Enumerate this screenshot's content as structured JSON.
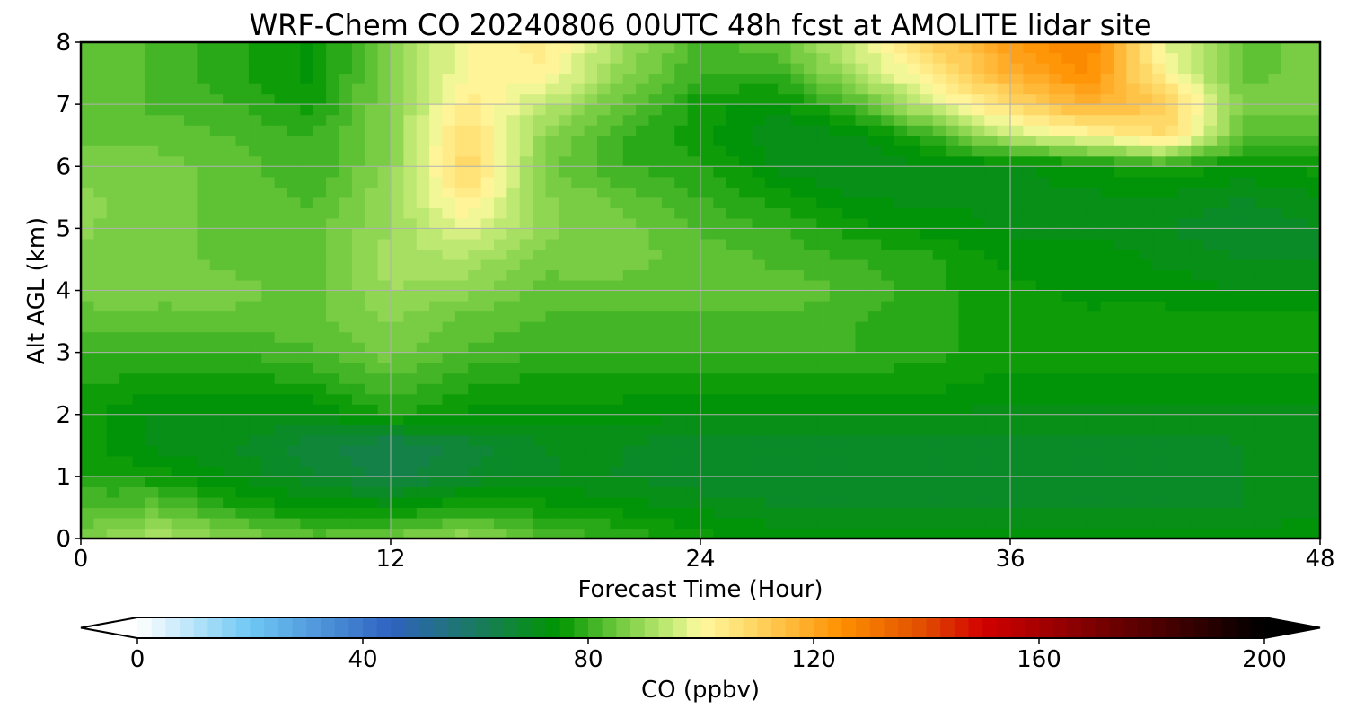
{
  "chart_data": {
    "type": "heatmap",
    "title": "WRF-Chem CO  20240806 00UTC 48h fcst at AMOLITE lidar site",
    "xlabel": "Forecast Time (Hour)",
    "ylabel": "Alt AGL (km)",
    "xlim": [
      0,
      48
    ],
    "ylim": [
      0,
      8
    ],
    "x_ticks": [
      0,
      12,
      24,
      36,
      48
    ],
    "y_ticks": [
      0,
      1,
      2,
      3,
      4,
      5,
      6,
      7,
      8
    ],
    "grid": true,
    "x": [
      0,
      3,
      6,
      9,
      12,
      15,
      18,
      21,
      24,
      27,
      30,
      33,
      36,
      39,
      42,
      45,
      48
    ],
    "y": [
      0,
      0.5,
      1,
      1.5,
      2,
      2.5,
      3,
      3.5,
      4,
      4.5,
      5,
      5.5,
      6,
      6.5,
      7,
      7.5,
      8
    ],
    "z": [
      [
        86,
        92,
        88,
        84,
        86,
        90,
        82,
        80,
        76,
        74,
        74,
        74,
        74,
        74,
        74,
        74,
        74
      ],
      [
        82,
        84,
        78,
        74,
        74,
        78,
        76,
        74,
        72,
        70,
        70,
        70,
        70,
        70,
        70,
        70,
        72
      ],
      [
        78,
        76,
        72,
        68,
        64,
        68,
        70,
        70,
        68,
        68,
        68,
        68,
        68,
        68,
        68,
        70,
        72
      ],
      [
        76,
        72,
        70,
        66,
        62,
        66,
        70,
        70,
        68,
        68,
        68,
        68,
        68,
        68,
        68,
        70,
        72
      ],
      [
        76,
        72,
        72,
        72,
        78,
        74,
        74,
        74,
        72,
        72,
        72,
        72,
        72,
        72,
        72,
        72,
        72
      ],
      [
        78,
        76,
        76,
        78,
        82,
        78,
        76,
        76,
        76,
        76,
        76,
        76,
        74,
        74,
        74,
        74,
        74
      ],
      [
        80,
        80,
        80,
        82,
        86,
        82,
        80,
        80,
        80,
        80,
        80,
        78,
        76,
        76,
        76,
        76,
        76
      ],
      [
        84,
        84,
        84,
        84,
        88,
        84,
        82,
        82,
        82,
        82,
        80,
        78,
        76,
        76,
        76,
        76,
        76
      ],
      [
        86,
        86,
        86,
        84,
        90,
        88,
        84,
        84,
        84,
        84,
        82,
        78,
        76,
        74,
        74,
        72,
        72
      ],
      [
        86,
        86,
        84,
        84,
        92,
        92,
        86,
        86,
        84,
        82,
        80,
        78,
        74,
        74,
        72,
        70,
        70
      ],
      [
        88,
        86,
        84,
        84,
        90,
        98,
        88,
        86,
        82,
        80,
        76,
        74,
        72,
        72,
        70,
        68,
        70
      ],
      [
        88,
        86,
        84,
        82,
        90,
        104,
        88,
        84,
        80,
        76,
        72,
        72,
        72,
        72,
        72,
        70,
        72
      ],
      [
        86,
        86,
        84,
        80,
        88,
        110,
        86,
        80,
        78,
        72,
        70,
        72,
        72,
        74,
        78,
        74,
        76
      ],
      [
        84,
        84,
        82,
        80,
        88,
        108,
        88,
        80,
        76,
        70,
        72,
        80,
        94,
        100,
        108,
        84,
        82
      ],
      [
        84,
        82,
        80,
        76,
        88,
        104,
        94,
        84,
        76,
        74,
        82,
        96,
        108,
        118,
        112,
        86,
        86
      ],
      [
        84,
        82,
        78,
        74,
        88,
        100,
        102,
        88,
        80,
        80,
        92,
        104,
        118,
        126,
        102,
        84,
        86
      ],
      [
        84,
        82,
        78,
        74,
        88,
        100,
        104,
        90,
        82,
        84,
        96,
        110,
        122,
        128,
        98,
        84,
        86
      ]
    ],
    "colorbar": {
      "label": "CO  (ppbv)",
      "min": 0,
      "max": 200,
      "step": 2.5,
      "ticks": [
        0,
        40,
        80,
        120,
        160,
        200
      ],
      "extend": "both",
      "colors": [
        {
          "v": 0,
          "c": "#ffffff"
        },
        {
          "v": 20,
          "c": "#6ec8f4"
        },
        {
          "v": 45,
          "c": "#2f62c0"
        },
        {
          "v": 60,
          "c": "#1a7a60"
        },
        {
          "v": 75,
          "c": "#009600"
        },
        {
          "v": 85,
          "c": "#6cc83c"
        },
        {
          "v": 95,
          "c": "#c8ec78"
        },
        {
          "v": 100,
          "c": "#fff9a0"
        },
        {
          "v": 110,
          "c": "#ffd460"
        },
        {
          "v": 125,
          "c": "#ff9000"
        },
        {
          "v": 140,
          "c": "#e04a00"
        },
        {
          "v": 150,
          "c": "#d20000"
        },
        {
          "v": 170,
          "c": "#7a0000"
        },
        {
          "v": 200,
          "c": "#000000"
        }
      ]
    }
  }
}
